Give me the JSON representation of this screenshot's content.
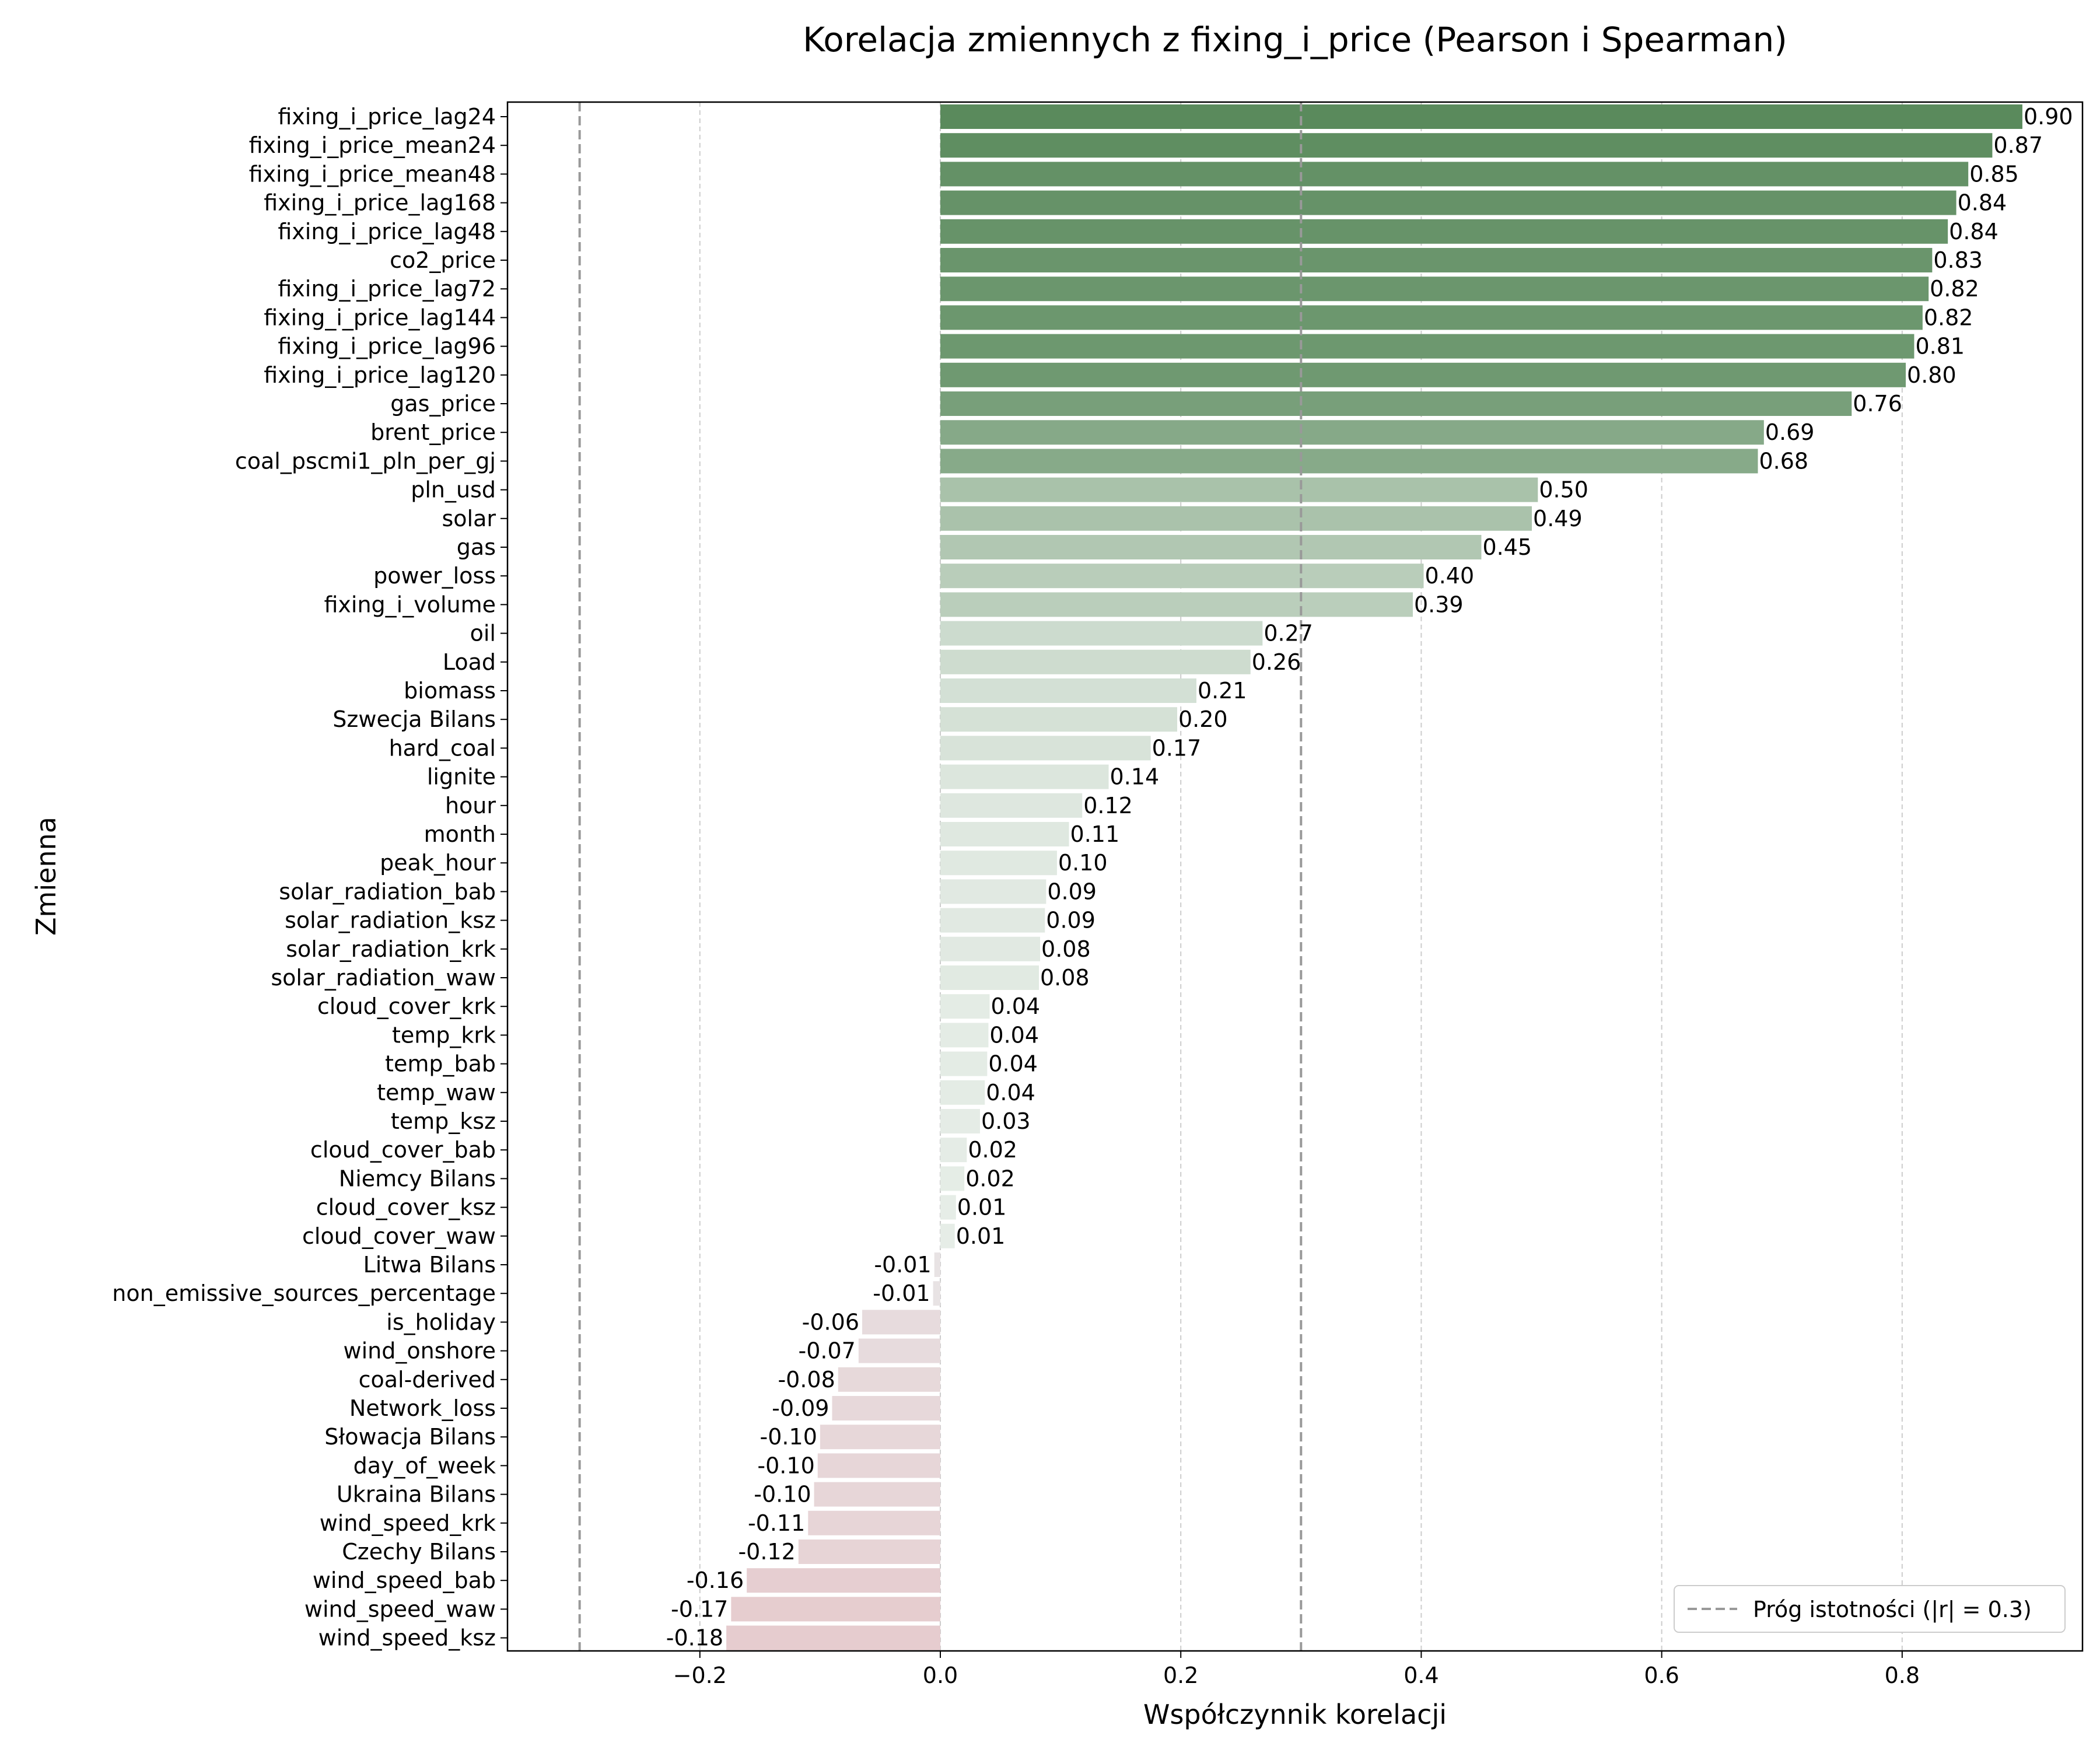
{
  "chart_data": {
    "type": "bar",
    "orientation": "horizontal",
    "title": "Korelacja zmiennych z fixing_i_price (Pearson i Spearman)",
    "xlabel": "Współczynnik korelacji",
    "ylabel": "Zmienna",
    "xlim": [
      -0.36,
      0.95
    ],
    "xticks": [
      -0.2,
      0.0,
      0.2,
      0.4,
      0.6,
      0.8
    ],
    "xtick_labels": [
      "−0.2",
      "0.0",
      "0.2",
      "0.4",
      "0.6",
      "0.8"
    ],
    "grid": "x dashed",
    "threshold": 0.3,
    "legend": {
      "label": "Próg istotności (|r| = 0.3)",
      "placement": "lower right"
    },
    "colors": {
      "positive_max": "#5a8a5c",
      "positive_min": "#e6ede7",
      "negative_min": "#e8e4e5",
      "negative_max": "#e6cccf",
      "threshold_line": "#999999",
      "grid": "#cccccc"
    },
    "categories": [
      "fixing_i_price_lag24",
      "fixing_i_price_mean24",
      "fixing_i_price_mean48",
      "fixing_i_price_lag168",
      "fixing_i_price_lag48",
      "co2_price",
      "fixing_i_price_lag72",
      "fixing_i_price_lag144",
      "fixing_i_price_lag96",
      "fixing_i_price_lag120",
      "gas_price",
      "brent_price",
      "coal_pscmi1_pln_per_gj",
      "pln_usd",
      "solar",
      "gas",
      "power_loss",
      "fixing_i_volume",
      "oil",
      "Load",
      "biomass",
      "Szwecja Bilans",
      "hard_coal",
      "lignite",
      "hour",
      "month",
      "peak_hour",
      "solar_radiation_bab",
      "solar_radiation_ksz",
      "solar_radiation_krk",
      "solar_radiation_waw",
      "cloud_cover_krk",
      "temp_krk",
      "temp_bab",
      "temp_waw",
      "temp_ksz",
      "cloud_cover_bab",
      "Niemcy Bilans",
      "cloud_cover_ksz",
      "cloud_cover_waw",
      "Litwa Bilans",
      "non_emissive_sources_percentage",
      "is_holiday",
      "wind_onshore",
      "coal-derived",
      "Network_loss",
      "Słowacja Bilans",
      "day_of_week",
      "Ukraina Bilans",
      "wind_speed_krk",
      "Czechy Bilans",
      "wind_speed_bab",
      "wind_speed_waw",
      "wind_speed_ksz"
    ],
    "values": [
      0.9,
      0.875,
      0.855,
      0.845,
      0.838,
      0.825,
      0.822,
      0.817,
      0.81,
      0.803,
      0.758,
      0.685,
      0.68,
      0.497,
      0.492,
      0.45,
      0.402,
      0.393,
      0.268,
      0.258,
      0.213,
      0.197,
      0.175,
      0.14,
      0.118,
      0.107,
      0.097,
      0.088,
      0.087,
      0.083,
      0.082,
      0.041,
      0.04,
      0.039,
      0.037,
      0.033,
      0.022,
      0.02,
      0.013,
      0.012,
      -0.005,
      -0.006,
      -0.065,
      -0.068,
      -0.085,
      -0.09,
      -0.1,
      -0.102,
      -0.105,
      -0.11,
      -0.118,
      -0.161,
      -0.174,
      -0.178
    ],
    "value_labels": [
      "0.90",
      "0.87",
      "0.85",
      "0.84",
      "0.84",
      "0.83",
      "0.82",
      "0.82",
      "0.81",
      "0.80",
      "0.76",
      "0.69",
      "0.68",
      "0.50",
      "0.49",
      "0.45",
      "0.40",
      "0.39",
      "0.27",
      "0.26",
      "0.21",
      "0.20",
      "0.17",
      "0.14",
      "0.12",
      "0.11",
      "0.10",
      "0.09",
      "0.09",
      "0.08",
      "0.08",
      "0.04",
      "0.04",
      "0.04",
      "0.04",
      "0.03",
      "0.02",
      "0.02",
      "0.01",
      "0.01",
      "-0.01",
      "-0.01",
      "-0.06",
      "-0.07",
      "-0.08",
      "-0.09",
      "-0.10",
      "-0.10",
      "-0.10",
      "-0.11",
      "-0.12",
      "-0.16",
      "-0.17",
      "-0.18"
    ]
  }
}
